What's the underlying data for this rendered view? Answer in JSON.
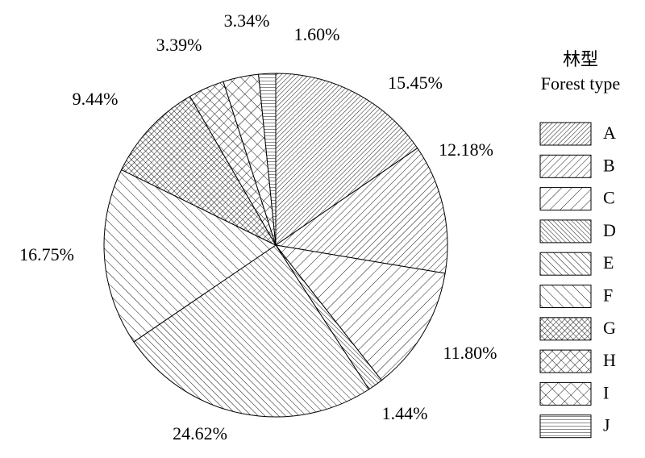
{
  "chart_data": {
    "type": "pie",
    "legend_title": [
      "林型",
      "Forest type"
    ],
    "categories": [
      "A",
      "B",
      "C",
      "D",
      "E",
      "F",
      "G",
      "H",
      "I",
      "J"
    ],
    "values": [
      15.45,
      12.18,
      11.8,
      1.44,
      24.62,
      16.75,
      9.44,
      3.39,
      3.34,
      1.6
    ],
    "value_labels": [
      "15.45%",
      "12.18%",
      "11.80%",
      "1.44%",
      "24.62%",
      "16.75%",
      "9.44%",
      "3.39%",
      "3.34%",
      "1.60%"
    ],
    "legend": "right"
  }
}
